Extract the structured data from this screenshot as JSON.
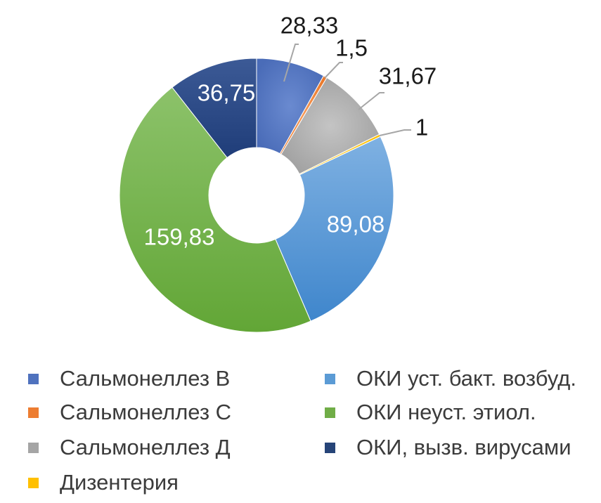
{
  "chart_data": {
    "type": "pie",
    "donut": true,
    "series": [
      {
        "name": "Сальмонеллез В",
        "value": 28.33,
        "label": "28,33",
        "color": "#4f72be"
      },
      {
        "name": "Сальмонеллез С",
        "value": 1.5,
        "label": "1,5",
        "color": "#ed7d31"
      },
      {
        "name": "Сальмонеллез Д",
        "value": 31.67,
        "label": "31,67",
        "color": "#a5a5a5"
      },
      {
        "name": "Дизентерия",
        "value": 1,
        "label": "1",
        "color": "#ffc000"
      },
      {
        "name": "ОКИ уст. бакт. возбуд.",
        "value": 89.08,
        "label": "89,08",
        "color": "#5b9bd5"
      },
      {
        "name": "ОКИ неуст. этиол.",
        "value": 159.83,
        "label": "159,83",
        "color": "#70ad47"
      },
      {
        "name": "ОКИ, вызв. вирусами",
        "value": 36.75,
        "label": "36,75",
        "color": "#264478"
      }
    ],
    "legend_position": "bottom"
  }
}
